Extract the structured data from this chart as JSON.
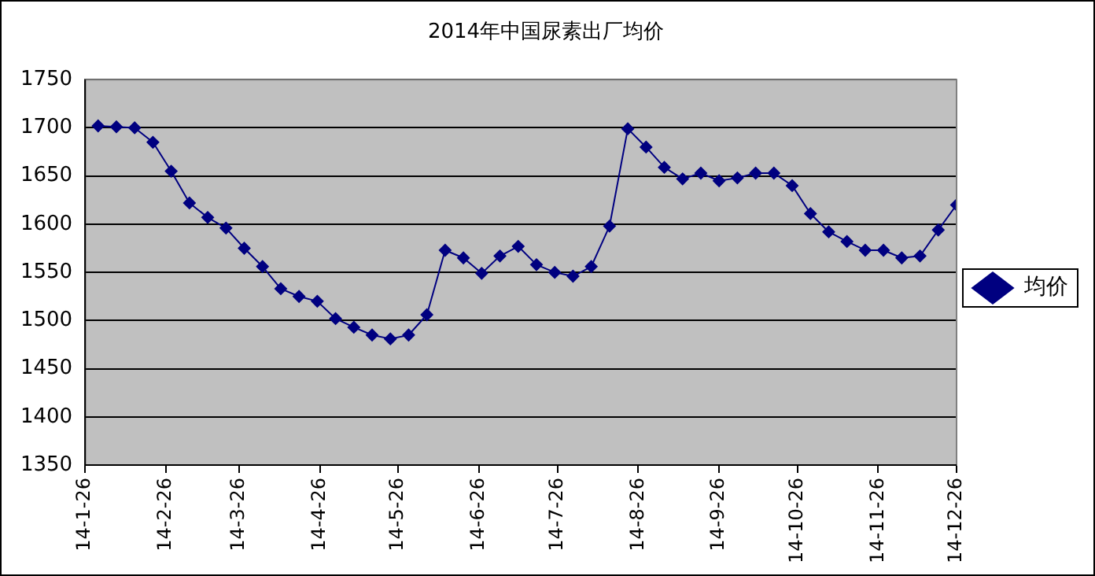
{
  "chart_data": {
    "type": "line",
    "title": "2014年中国尿素出厂均价",
    "x": [
      "2014-01-31",
      "2014-02-07",
      "2014-02-14",
      "2014-02-21",
      "2014-02-28",
      "2014-03-07",
      "2014-03-14",
      "2014-03-21",
      "2014-03-28",
      "2014-04-04",
      "2014-04-11",
      "2014-04-18",
      "2014-04-25",
      "2014-05-02",
      "2014-05-09",
      "2014-05-16",
      "2014-05-23",
      "2014-05-30",
      "2014-06-06",
      "2014-06-13",
      "2014-06-20",
      "2014-06-27",
      "2014-07-04",
      "2014-07-11",
      "2014-07-18",
      "2014-07-25",
      "2014-08-01",
      "2014-08-08",
      "2014-08-15",
      "2014-08-22",
      "2014-08-29",
      "2014-09-05",
      "2014-09-12",
      "2014-09-19",
      "2014-09-26",
      "2014-10-03",
      "2014-10-10",
      "2014-10-17",
      "2014-10-24",
      "2014-10-31",
      "2014-11-07",
      "2014-11-14",
      "2014-11-21",
      "2014-11-28",
      "2014-12-05",
      "2014-12-12",
      "2014-12-19",
      "2014-12-26"
    ],
    "series": [
      {
        "name": "均价",
        "color": "#000080",
        "values": [
          1702,
          1701,
          1700,
          1685,
          1655,
          1622,
          1607,
          1596,
          1575,
          1556,
          1533,
          1525,
          1520,
          1502,
          1493,
          1485,
          1481,
          1485,
          1506,
          1573,
          1565,
          1549,
          1567,
          1577,
          1558,
          1550,
          1546,
          1556,
          1598,
          1699,
          1680,
          1659,
          1647,
          1653,
          1645,
          1648,
          1653,
          1653,
          1640,
          1611,
          1592,
          1582,
          1573,
          1573,
          1565,
          1567,
          1594,
          1620
        ]
      }
    ],
    "xlim": [
      "2014-01-26",
      "2014-12-26"
    ],
    "xticks": [
      {
        "value": "2014-01-26",
        "label": "14-1-26"
      },
      {
        "value": "2014-02-26",
        "label": "14-2-26"
      },
      {
        "value": "2014-03-26",
        "label": "14-3-26"
      },
      {
        "value": "2014-04-26",
        "label": "14-4-26"
      },
      {
        "value": "2014-05-26",
        "label": "14-5-26"
      },
      {
        "value": "2014-06-26",
        "label": "14-6-26"
      },
      {
        "value": "2014-07-26",
        "label": "14-7-26"
      },
      {
        "value": "2014-08-26",
        "label": "14-8-26"
      },
      {
        "value": "2014-09-26",
        "label": "14-9-26"
      },
      {
        "value": "2014-10-26",
        "label": "14-10-26"
      },
      {
        "value": "2014-11-26",
        "label": "14-11-26"
      },
      {
        "value": "2014-12-26",
        "label": "14-12-26"
      }
    ],
    "ylim": [
      1350,
      1750
    ],
    "yticks": [
      1350,
      1400,
      1450,
      1500,
      1550,
      1600,
      1650,
      1700,
      1750
    ],
    "grid": "y",
    "legend": "right",
    "marker": "diamond",
    "line_style": "solid"
  }
}
